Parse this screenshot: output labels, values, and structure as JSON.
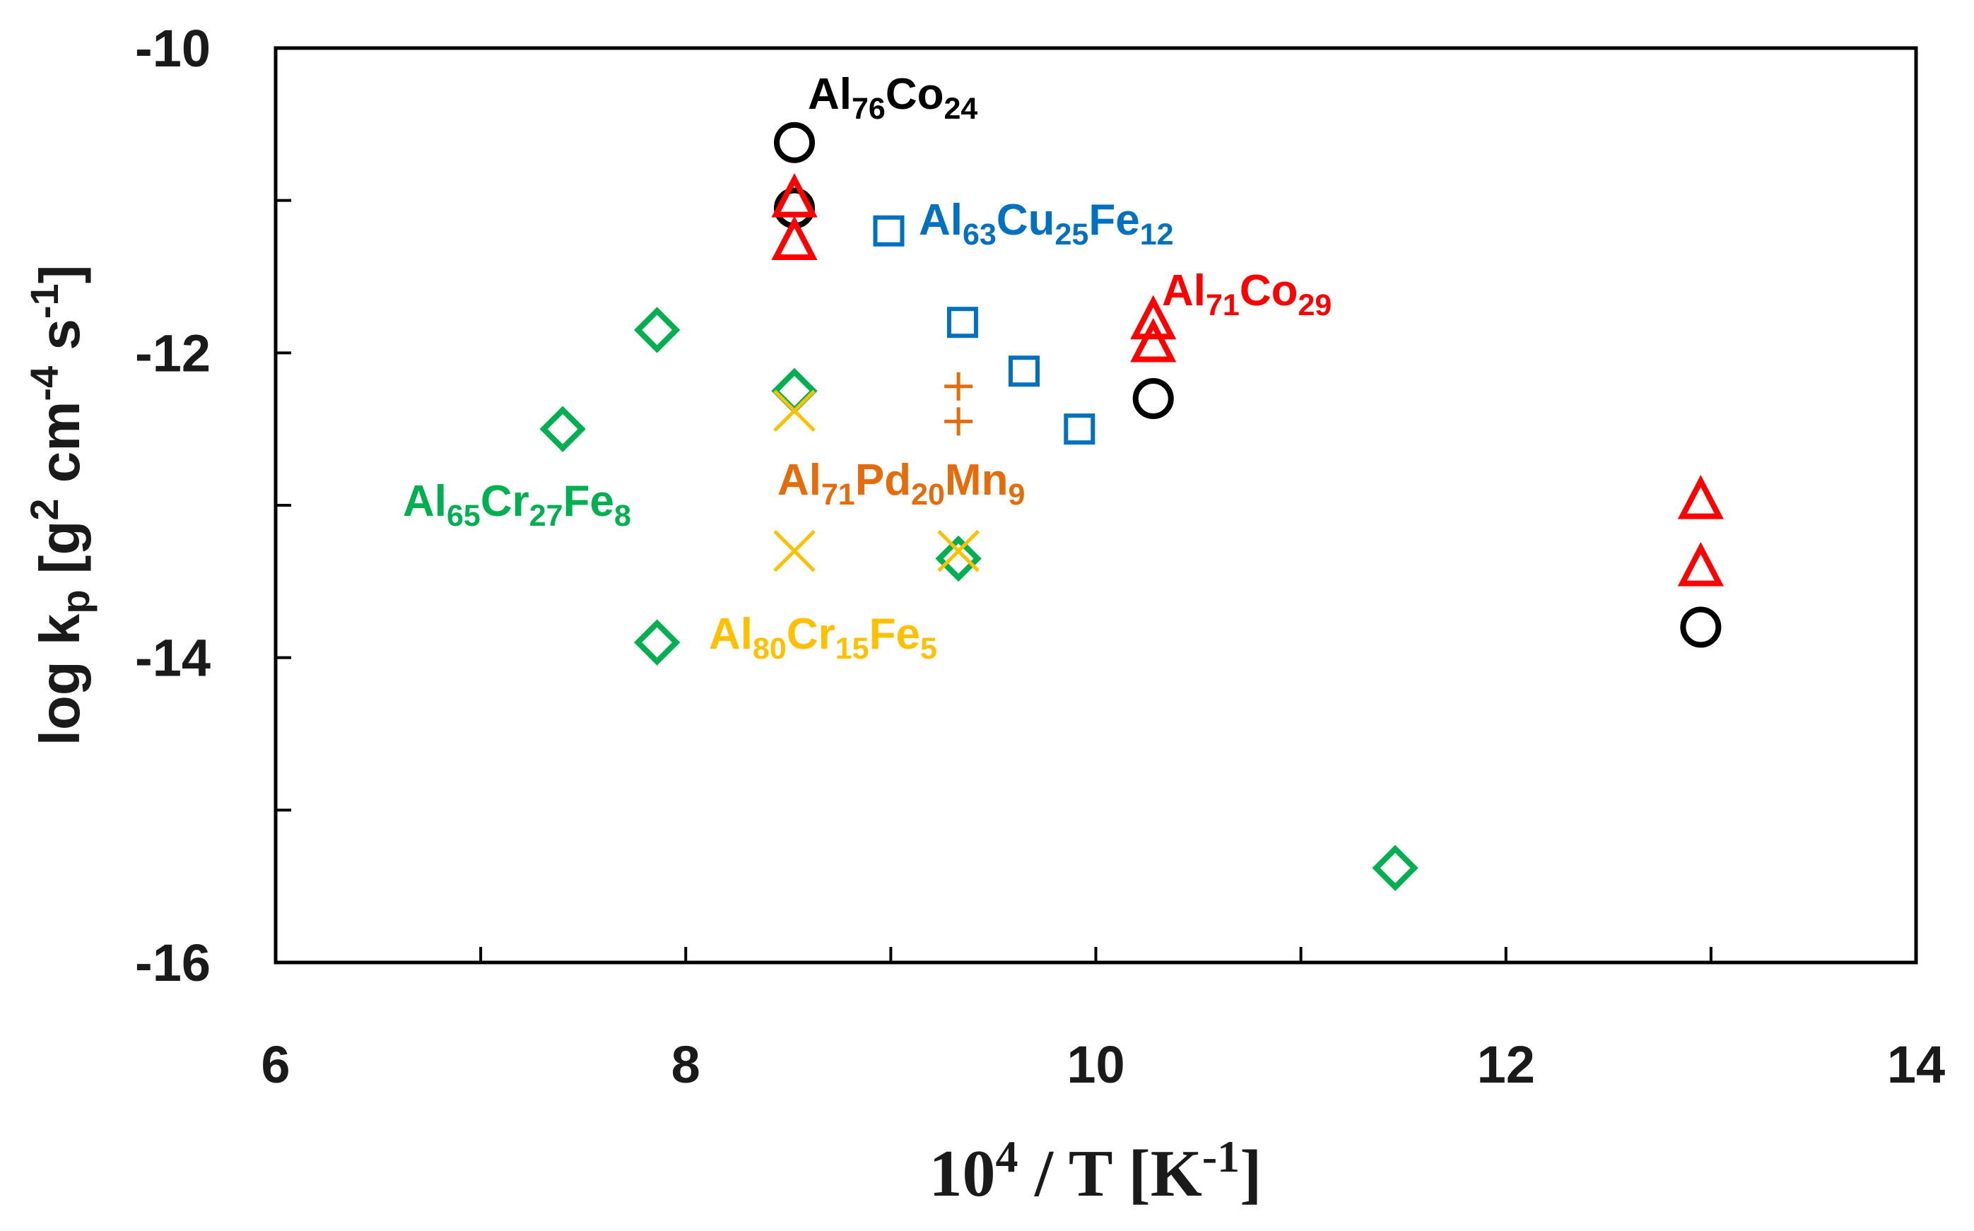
{
  "chart_data": {
    "type": "scatter",
    "xlabel": "10^4 / T [K^-1]",
    "ylabel": "log k_p [g^2 cm^-4 s^-1]",
    "xlim": [
      6,
      14
    ],
    "ylim": [
      -16,
      -10
    ],
    "x_ticks": [
      "6",
      "8",
      "10",
      "12",
      "14"
    ],
    "y_ticks": [
      "-10",
      "-12",
      "-14",
      "-16"
    ],
    "x_minor_step": 1,
    "y_minor_step": 1,
    "grid": false,
    "legend": "none",
    "series": [
      {
        "name": "Al76Co24",
        "label_parts": [
          [
            "Al",
            false
          ],
          [
            "76",
            true
          ],
          [
            "Co",
            false
          ],
          [
            "24",
            true
          ]
        ],
        "marker": "circle",
        "color": "#000000",
        "x": [
          8.53,
          8.53,
          10.28,
          12.95
        ],
        "y": [
          -10.62,
          -11.05,
          -12.3,
          -13.8
        ]
      },
      {
        "name": "Al71Co29",
        "label_parts": [
          [
            "Al",
            false
          ],
          [
            "71",
            true
          ],
          [
            "Co",
            false
          ],
          [
            "29",
            true
          ]
        ],
        "marker": "triangle",
        "color": "#ff0000",
        "x": [
          8.53,
          8.53,
          10.28,
          10.28,
          12.95,
          12.95
        ],
        "y": [
          -11.0,
          -11.28,
          -11.8,
          -11.95,
          -12.98,
          -13.42
        ]
      },
      {
        "name": "Al63Cu25Fe12",
        "label_parts": [
          [
            "Al",
            false
          ],
          [
            "63",
            true
          ],
          [
            "Cu",
            false
          ],
          [
            "25",
            true
          ],
          [
            "Fe",
            false
          ],
          [
            "12",
            true
          ]
        ],
        "marker": "square",
        "color": "#0070c0",
        "x": [
          8.99,
          9.35,
          9.65,
          9.92
        ],
        "y": [
          -11.2,
          -11.8,
          -12.12,
          -12.5
        ]
      },
      {
        "name": "Al65Cr27Fe8",
        "label_parts": [
          [
            "Al",
            false
          ],
          [
            "65",
            true
          ],
          [
            "Cr",
            false
          ],
          [
            "27",
            true
          ],
          [
            "Fe",
            false
          ],
          [
            "8",
            true
          ]
        ],
        "marker": "diamond",
        "color": "#00b050",
        "x": [
          7.4,
          7.86,
          8.53,
          9.33,
          7.86,
          11.46
        ],
        "y": [
          -12.5,
          -11.85,
          -12.25,
          -13.35,
          -13.9,
          -15.38
        ]
      },
      {
        "name": "Al71Pd20Mn9",
        "label_parts": [
          [
            "Al",
            false
          ],
          [
            "71",
            true
          ],
          [
            "Pd",
            false
          ],
          [
            "20",
            true
          ],
          [
            "Mn",
            false
          ],
          [
            "9",
            true
          ]
        ],
        "marker": "plus",
        "color": "#e46c0a",
        "x": [
          9.33,
          9.33
        ],
        "y": [
          -12.22,
          -12.45
        ]
      },
      {
        "name": "Al80Cr15Fe5",
        "label_parts": [
          [
            "Al",
            false
          ],
          [
            "80",
            true
          ],
          [
            "Cr",
            false
          ],
          [
            "15",
            true
          ],
          [
            "Fe",
            false
          ],
          [
            "5",
            true
          ]
        ],
        "marker": "x",
        "color": "#ffc000",
        "x": [
          8.53,
          8.53,
          9.33
        ],
        "y": [
          -12.38,
          -13.3,
          -13.3
        ]
      }
    ]
  }
}
